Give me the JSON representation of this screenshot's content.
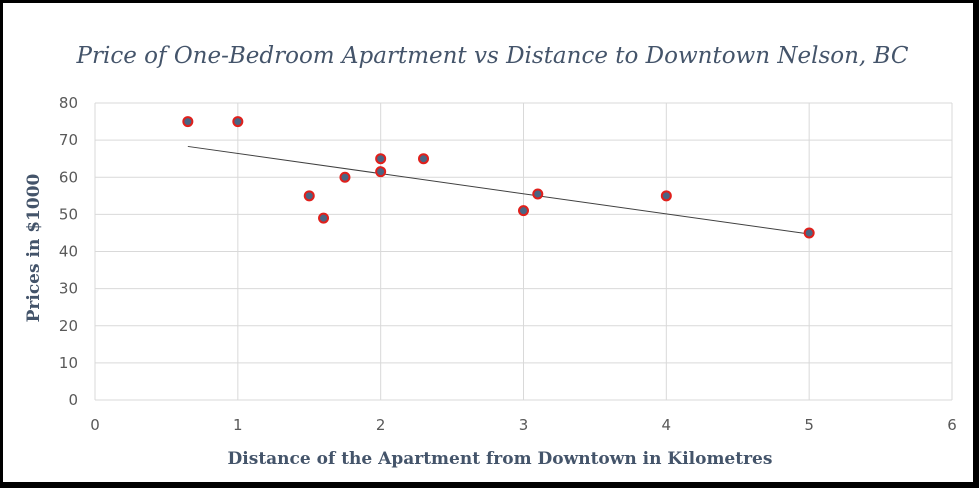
{
  "chart_data": {
    "type": "scatter",
    "title": "Price of  One-Bedroom Apartment vs Distance to Downtown Nelson, BC",
    "xlabel": "Distance of the Apartment from Downtown in Kilometres",
    "ylabel": "Prices in $1000",
    "xlim": [
      0,
      6
    ],
    "ylim": [
      0,
      80
    ],
    "xticks": [
      "0",
      "1",
      "2",
      "3",
      "4",
      "5",
      "6"
    ],
    "yticks": [
      "0",
      "10",
      "20",
      "30",
      "40",
      "50",
      "60",
      "70",
      "80"
    ],
    "grid": true,
    "legend": "none",
    "points": [
      {
        "x": 0.65,
        "y": 75
      },
      {
        "x": 1.0,
        "y": 75
      },
      {
        "x": 1.5,
        "y": 55
      },
      {
        "x": 1.6,
        "y": 49
      },
      {
        "x": 1.75,
        "y": 60
      },
      {
        "x": 2.0,
        "y": 65
      },
      {
        "x": 2.0,
        "y": 61.5
      },
      {
        "x": 2.3,
        "y": 65
      },
      {
        "x": 3.0,
        "y": 51
      },
      {
        "x": 3.1,
        "y": 55.5
      },
      {
        "x": 4.0,
        "y": 55
      },
      {
        "x": 5.0,
        "y": 45
      }
    ],
    "trendline": {
      "x": [
        0.65,
        5.0
      ],
      "y": [
        68.3,
        44.7
      ]
    },
    "colors": {
      "marker_fill": "#4a6583",
      "marker_edge": "#e0201c",
      "trendline": "#404040",
      "grid": "#d9d9d9",
      "text": "#44546a"
    }
  }
}
